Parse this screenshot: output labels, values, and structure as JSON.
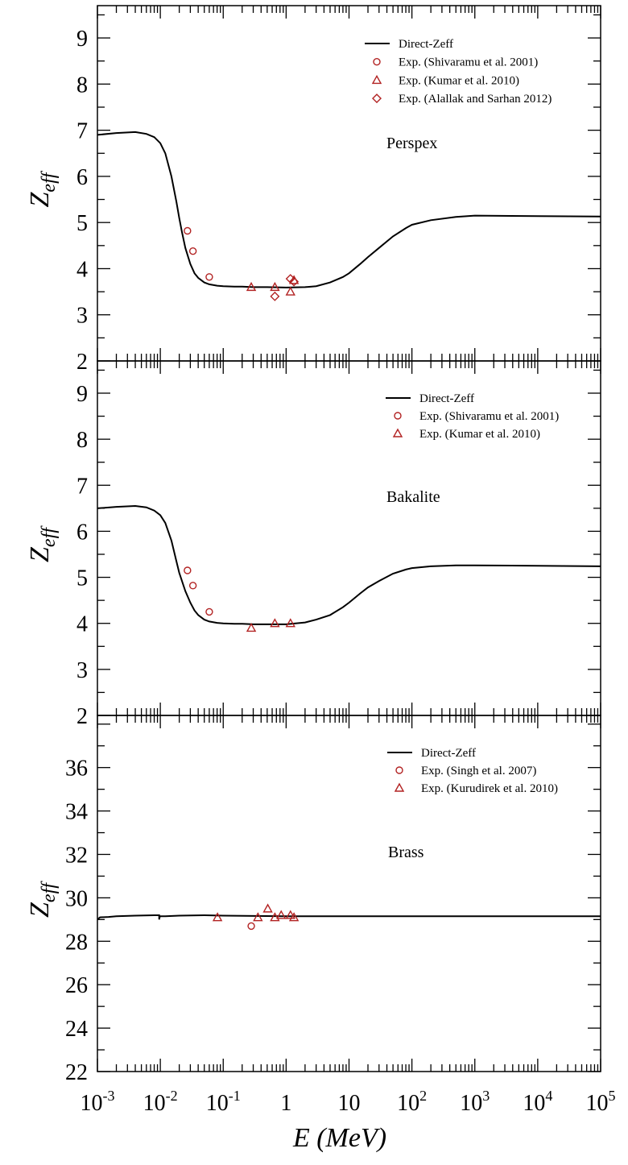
{
  "figure": {
    "xlabel": "E (MeV)",
    "ylabel_main": "Z",
    "ylabel_sub": "eff",
    "xscale": "log",
    "xlim": [
      0.001,
      100000
    ],
    "x_ticks": [
      {
        "base": "10",
        "exp": "-3",
        "value": 0.001
      },
      {
        "base": "10",
        "exp": "-2",
        "value": 0.01
      },
      {
        "base": "10",
        "exp": "-1",
        "value": 0.1
      },
      {
        "base": "1",
        "exp": "",
        "value": 1
      },
      {
        "base": "10",
        "exp": "",
        "value": 10
      },
      {
        "base": "10",
        "exp": "2",
        "value": 100
      },
      {
        "base": "10",
        "exp": "3",
        "value": 1000
      },
      {
        "base": "10",
        "exp": "4",
        "value": 10000
      },
      {
        "base": "10",
        "exp": "5",
        "value": 100000
      }
    ],
    "colors": {
      "line": "#000000",
      "markers": "#b22222",
      "axes": "#000000"
    }
  },
  "chart_data": [
    {
      "type": "line",
      "title": "Perspex",
      "ylim": [
        2,
        9.7
      ],
      "y_ticks": [
        2,
        3,
        4,
        5,
        6,
        7,
        8,
        9
      ],
      "legend_position": "top-right",
      "line": {
        "name": "Direct-Zeff",
        "x": [
          0.001,
          0.002,
          0.004,
          0.006,
          0.008,
          0.01,
          0.012,
          0.015,
          0.018,
          0.02,
          0.022,
          0.025,
          0.03,
          0.035,
          0.04,
          0.05,
          0.06,
          0.08,
          0.1,
          0.15,
          0.2,
          0.3,
          0.5,
          1,
          2,
          3,
          5,
          8,
          10,
          15,
          20,
          30,
          50,
          80,
          100,
          200,
          500,
          1000,
          10000,
          100000
        ],
        "y": [
          6.9,
          6.94,
          6.96,
          6.92,
          6.85,
          6.72,
          6.5,
          6.0,
          5.45,
          5.1,
          4.8,
          4.45,
          4.1,
          3.9,
          3.8,
          3.7,
          3.66,
          3.63,
          3.62,
          3.61,
          3.61,
          3.6,
          3.6,
          3.59,
          3.6,
          3.62,
          3.7,
          3.82,
          3.9,
          4.1,
          4.25,
          4.45,
          4.7,
          4.88,
          4.95,
          5.05,
          5.12,
          5.15,
          5.14,
          5.13
        ]
      },
      "series": [
        {
          "name": "Exp. (Shivaramu et al. 2001)",
          "marker": "circle",
          "x": [
            0.027,
            0.033,
            0.06
          ],
          "y": [
            4.82,
            4.38,
            3.82
          ]
        },
        {
          "name": "Exp. (Kumar et al. 2010)",
          "marker": "triangle",
          "x": [
            0.279,
            0.662,
            1.173,
            1.332
          ],
          "y": [
            3.6,
            3.6,
            3.5,
            3.75
          ]
        },
        {
          "name": "Exp. (Alallak and Sarhan 2012)",
          "marker": "diamond",
          "x": [
            0.662,
            1.17,
            1.33
          ],
          "y": [
            3.4,
            3.78,
            3.72
          ]
        }
      ]
    },
    {
      "type": "line",
      "title": "Bakalite",
      "ylim": [
        2,
        9.7
      ],
      "y_ticks": [
        2,
        3,
        4,
        5,
        6,
        7,
        8,
        9
      ],
      "legend_position": "top-right",
      "line": {
        "name": "Direct-Zeff",
        "x": [
          0.001,
          0.002,
          0.004,
          0.006,
          0.008,
          0.01,
          0.012,
          0.015,
          0.018,
          0.02,
          0.025,
          0.03,
          0.035,
          0.04,
          0.05,
          0.06,
          0.08,
          0.1,
          0.15,
          0.2,
          0.3,
          0.5,
          1,
          2,
          3,
          5,
          8,
          10,
          15,
          20,
          30,
          50,
          80,
          100,
          200,
          500,
          1000,
          10000,
          100000
        ],
        "y": [
          6.5,
          6.53,
          6.55,
          6.52,
          6.45,
          6.35,
          6.18,
          5.8,
          5.35,
          5.1,
          4.7,
          4.45,
          4.28,
          4.18,
          4.08,
          4.04,
          4.01,
          4.0,
          3.99,
          3.99,
          3.98,
          3.98,
          3.98,
          4.02,
          4.08,
          4.18,
          4.35,
          4.45,
          4.65,
          4.78,
          4.92,
          5.08,
          5.17,
          5.2,
          5.24,
          5.26,
          5.26,
          5.25,
          5.24
        ]
      },
      "series": [
        {
          "name": "Exp. (Shivaramu et al. 2001)",
          "marker": "circle",
          "x": [
            0.027,
            0.033,
            0.06
          ],
          "y": [
            5.15,
            4.82,
            4.25
          ]
        },
        {
          "name": "Exp. (Kumar et al. 2010)",
          "marker": "triangle",
          "x": [
            0.279,
            0.662,
            1.173
          ],
          "y": [
            3.9,
            4.0,
            4.0
          ]
        }
      ]
    },
    {
      "type": "line",
      "title": "Brass",
      "ylim": [
        22,
        38.4
      ],
      "y_ticks": [
        22,
        24,
        26,
        28,
        30,
        32,
        34,
        36
      ],
      "legend_position": "top-right",
      "line": {
        "name": "Direct-Zeff",
        "x": [
          0.001,
          0.0011,
          0.0015,
          0.002,
          0.004,
          0.008,
          0.009,
          0.00958,
          0.00959,
          0.0096,
          0.0097,
          0.01,
          0.012,
          0.02,
          0.05,
          0.1,
          1,
          10,
          100,
          1000,
          10000,
          100000
        ],
        "y": [
          29.0,
          29.1,
          29.12,
          29.15,
          29.18,
          29.2,
          29.2,
          29.2,
          29.0,
          29.0,
          29.1,
          29.15,
          29.15,
          29.18,
          29.2,
          29.18,
          29.15,
          29.15,
          29.15,
          29.15,
          29.15,
          29.15
        ]
      },
      "series": [
        {
          "name": "Exp. (Singh et al. 2007)",
          "marker": "circle",
          "x": [
            0.279
          ],
          "y": [
            28.7
          ]
        },
        {
          "name": "Exp. (Kurudirek et al. 2010)",
          "marker": "triangle",
          "x": [
            0.081,
            0.356,
            0.511,
            0.662,
            0.835,
            1.173,
            1.332
          ],
          "y": [
            29.1,
            29.1,
            29.5,
            29.1,
            29.2,
            29.2,
            29.1
          ]
        }
      ]
    }
  ]
}
